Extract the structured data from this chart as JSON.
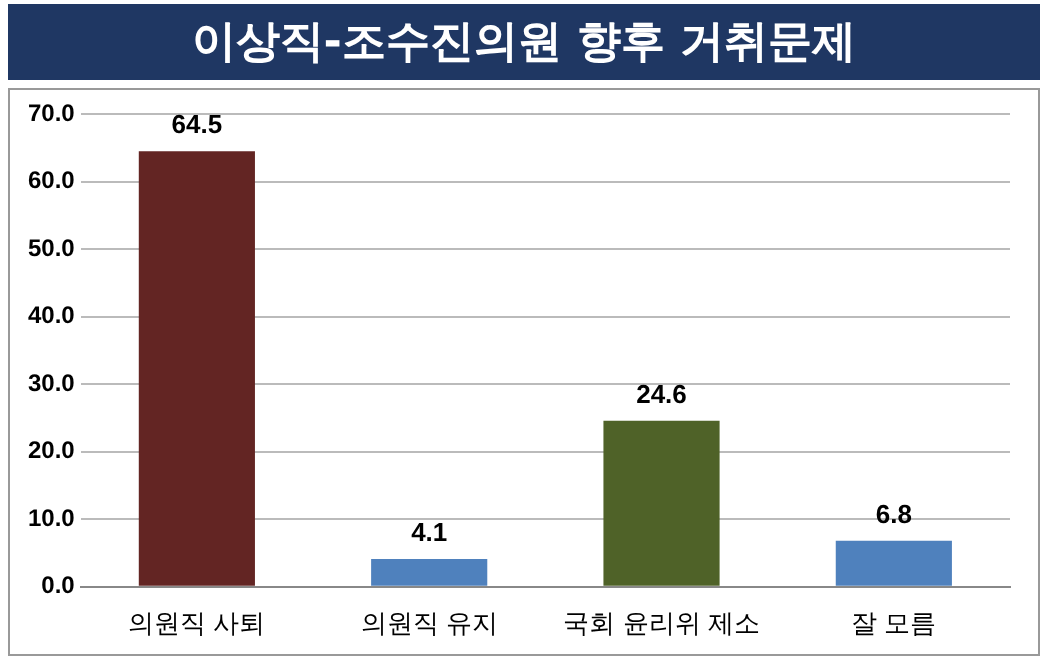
{
  "chart_data": {
    "type": "bar",
    "title": "이상직-조수진의원 향후 거취문제",
    "categories": [
      "의원직 사퇴",
      "의원직 유지",
      "국회 윤리위 제소",
      "잘 모름"
    ],
    "values": [
      64.5,
      4.1,
      24.6,
      6.8
    ],
    "colors": [
      "#632523",
      "#4f81bd",
      "#4f6228",
      "#4f81bd"
    ],
    "ylim": [
      0,
      70
    ],
    "yticks": [
      {
        "value": 0,
        "label": "0.0"
      },
      {
        "value": 10,
        "label": "10.0"
      },
      {
        "value": 20,
        "label": "20.0"
      },
      {
        "value": 30,
        "label": "30.0"
      },
      {
        "value": 40,
        "label": "40.0"
      },
      {
        "value": 50,
        "label": "50.0"
      },
      {
        "value": 60,
        "label": "60.0"
      },
      {
        "value": 70,
        "label": "70.0"
      }
    ],
    "grid": "y",
    "data_labels": true,
    "legend": false
  }
}
